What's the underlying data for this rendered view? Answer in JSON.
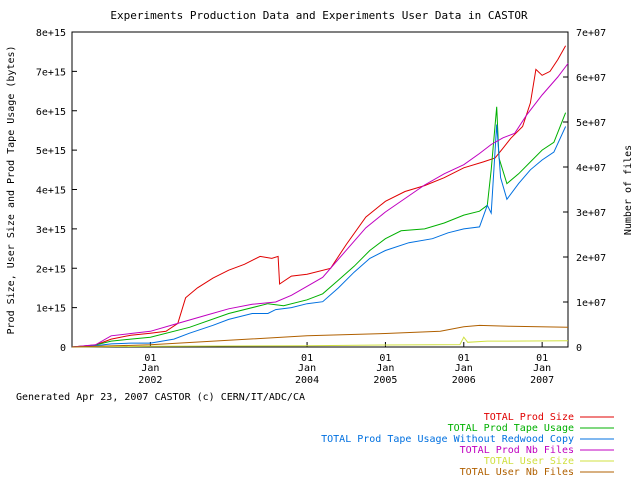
{
  "chart_data": {
    "type": "line",
    "title": "Experiments Production Data and Experiments User Data in CASTOR",
    "ylabel_left": "Prod Size, User Size and Prod Tape Usage (bytes)",
    "ylabel_right": "Number of files",
    "footer": "Generated Apr 23, 2007 CASTOR (c) CERN/IT/ADC/CA",
    "xlim": [
      2001.0,
      2007.33
    ],
    "ylim_left": [
      0,
      8000000000000000.0
    ],
    "ylim_right": [
      0,
      70000000.0
    ],
    "grid": false,
    "legend_position": "bottom-right",
    "left_ticks": [
      {
        "v": 0,
        "label": "0"
      },
      {
        "v": 1000000000000000.0,
        "label": "1e+15"
      },
      {
        "v": 2000000000000000.0,
        "label": "2e+15"
      },
      {
        "v": 3000000000000000.0,
        "label": "3e+15"
      },
      {
        "v": 4000000000000000.0,
        "label": "4e+15"
      },
      {
        "v": 5000000000000000.0,
        "label": "5e+15"
      },
      {
        "v": 6000000000000000.0,
        "label": "6e+15"
      },
      {
        "v": 7000000000000000.0,
        "label": "7e+15"
      },
      {
        "v": 8000000000000000.0,
        "label": "8e+15"
      }
    ],
    "right_ticks": [
      {
        "v": 0,
        "label": "0"
      },
      {
        "v": 10000000.0,
        "label": "1e+07"
      },
      {
        "v": 20000000.0,
        "label": "2e+07"
      },
      {
        "v": 30000000.0,
        "label": "3e+07"
      },
      {
        "v": 40000000.0,
        "label": "4e+07"
      },
      {
        "v": 50000000.0,
        "label": "5e+07"
      },
      {
        "v": 60000000.0,
        "label": "6e+07"
      },
      {
        "v": 70000000.0,
        "label": "7e+07"
      }
    ],
    "x_ticks": [
      {
        "v": 2002.0,
        "day": "01",
        "month": "Jan",
        "year": "2002"
      },
      {
        "v": 2004.0,
        "day": "01",
        "month": "Jan",
        "year": "2004"
      },
      {
        "v": 2005.0,
        "day": "01",
        "month": "Jan",
        "year": "2005"
      },
      {
        "v": 2006.0,
        "day": "01",
        "month": "Jan",
        "year": "2006"
      },
      {
        "v": 2007.0,
        "day": "01",
        "month": "Jan",
        "year": "2007"
      }
    ],
    "series": [
      {
        "name": "TOTAL Prod Size",
        "color": "#e00000",
        "axis": "left",
        "points": [
          [
            2001.0,
            0
          ],
          [
            2001.3,
            50000000000000.0
          ],
          [
            2001.5,
            200000000000000.0
          ],
          [
            2001.75,
            300000000000000.0
          ],
          [
            2002.0,
            350000000000000.0
          ],
          [
            2002.2,
            400000000000000.0
          ],
          [
            2002.35,
            600000000000000.0
          ],
          [
            2002.45,
            1250000000000000.0
          ],
          [
            2002.6,
            1500000000000000.0
          ],
          [
            2002.8,
            1750000000000000.0
          ],
          [
            2003.0,
            1950000000000000.0
          ],
          [
            2003.2,
            2100000000000000.0
          ],
          [
            2003.4,
            2300000000000000.0
          ],
          [
            2003.55,
            2250000000000000.0
          ],
          [
            2003.63,
            2300000000000000.0
          ],
          [
            2003.65,
            1600000000000000.0
          ],
          [
            2003.8,
            1800000000000000.0
          ],
          [
            2004.0,
            1850000000000000.0
          ],
          [
            2004.3,
            2000000000000000.0
          ],
          [
            2004.5,
            2600000000000000.0
          ],
          [
            2004.75,
            3300000000000000.0
          ],
          [
            2005.0,
            3700000000000000.0
          ],
          [
            2005.25,
            3950000000000000.0
          ],
          [
            2005.5,
            4100000000000000.0
          ],
          [
            2005.75,
            4300000000000000.0
          ],
          [
            2006.0,
            4550000000000000.0
          ],
          [
            2006.25,
            4700000000000000.0
          ],
          [
            2006.4,
            4800000000000000.0
          ],
          [
            2006.5,
            5050000000000000.0
          ],
          [
            2006.6,
            5300000000000000.0
          ],
          [
            2006.75,
            5600000000000000.0
          ],
          [
            2006.85,
            6200000000000000.0
          ],
          [
            2006.92,
            7050000000000000.0
          ],
          [
            2007.0,
            6900000000000000.0
          ],
          [
            2007.1,
            7000000000000000.0
          ],
          [
            2007.2,
            7300000000000000.0
          ],
          [
            2007.3,
            7650000000000000.0
          ]
        ]
      },
      {
        "name": "TOTAL Prod Tape Usage",
        "color": "#00b000",
        "axis": "left",
        "points": [
          [
            2001.0,
            0
          ],
          [
            2001.3,
            50000000000000.0
          ],
          [
            2001.5,
            150000000000000.0
          ],
          [
            2001.75,
            200000000000000.0
          ],
          [
            2002.0,
            250000000000000.0
          ],
          [
            2002.5,
            500000000000000.0
          ],
          [
            2003.0,
            850000000000000.0
          ],
          [
            2003.5,
            1100000000000000.0
          ],
          [
            2003.7,
            1050000000000000.0
          ],
          [
            2004.0,
            1200000000000000.0
          ],
          [
            2004.2,
            1350000000000000.0
          ],
          [
            2004.4,
            1700000000000000.0
          ],
          [
            2004.6,
            2050000000000000.0
          ],
          [
            2004.8,
            2450000000000000.0
          ],
          [
            2005.0,
            2750000000000000.0
          ],
          [
            2005.2,
            2950000000000000.0
          ],
          [
            2005.5,
            3000000000000000.0
          ],
          [
            2005.75,
            3150000000000000.0
          ],
          [
            2006.0,
            3350000000000000.0
          ],
          [
            2006.2,
            3450000000000000.0
          ],
          [
            2006.3,
            3600000000000000.0
          ],
          [
            2006.35,
            4500000000000000.0
          ],
          [
            2006.42,
            6100000000000000.0
          ],
          [
            2006.45,
            4800000000000000.0
          ],
          [
            2006.55,
            4150000000000000.0
          ],
          [
            2006.7,
            4400000000000000.0
          ],
          [
            2006.85,
            4700000000000000.0
          ],
          [
            2007.0,
            5000000000000000.0
          ],
          [
            2007.15,
            5200000000000000.0
          ],
          [
            2007.3,
            5950000000000000.0
          ]
        ]
      },
      {
        "name": "TOTAL Prod Tape Usage Without Redwood Copy",
        "color": "#0070e0",
        "axis": "left",
        "points": [
          [
            2001.0,
            0
          ],
          [
            2001.3,
            30000000000000.0
          ],
          [
            2001.5,
            80000000000000.0
          ],
          [
            2001.75,
            100000000000000.0
          ],
          [
            2002.0,
            100000000000000.0
          ],
          [
            2002.3,
            200000000000000.0
          ],
          [
            2002.5,
            350000000000000.0
          ],
          [
            2002.8,
            550000000000000.0
          ],
          [
            2003.0,
            700000000000000.0
          ],
          [
            2003.3,
            850000000000000.0
          ],
          [
            2003.5,
            850000000000000.0
          ],
          [
            2003.6,
            950000000000000.0
          ],
          [
            2003.8,
            1000000000000000.0
          ],
          [
            2004.0,
            1100000000000000.0
          ],
          [
            2004.2,
            1150000000000000.0
          ],
          [
            2004.4,
            1500000000000000.0
          ],
          [
            2004.6,
            1900000000000000.0
          ],
          [
            2004.8,
            2250000000000000.0
          ],
          [
            2005.0,
            2450000000000000.0
          ],
          [
            2005.3,
            2650000000000000.0
          ],
          [
            2005.6,
            2750000000000000.0
          ],
          [
            2005.8,
            2900000000000000.0
          ],
          [
            2006.0,
            3000000000000000.0
          ],
          [
            2006.2,
            3050000000000000.0
          ],
          [
            2006.3,
            3600000000000000.0
          ],
          [
            2006.35,
            3400000000000000.0
          ],
          [
            2006.42,
            5650000000000000.0
          ],
          [
            2006.47,
            4300000000000000.0
          ],
          [
            2006.55,
            3750000000000000.0
          ],
          [
            2006.7,
            4150000000000000.0
          ],
          [
            2006.85,
            4500000000000000.0
          ],
          [
            2007.0,
            4750000000000000.0
          ],
          [
            2007.15,
            4950000000000000.0
          ],
          [
            2007.3,
            5600000000000000.0
          ]
        ]
      },
      {
        "name": "TOTAL Prod Nb Files",
        "color": "#c000c0",
        "axis": "right",
        "points": [
          [
            2001.0,
            0
          ],
          [
            2001.3,
            500000.0
          ],
          [
            2001.5,
            2500000.0
          ],
          [
            2001.75,
            3000000.0
          ],
          [
            2002.0,
            3500000.0
          ],
          [
            2002.3,
            5000000.0
          ],
          [
            2002.7,
            7000000.0
          ],
          [
            2003.0,
            8500000.0
          ],
          [
            2003.3,
            9500000.0
          ],
          [
            2003.6,
            10000000.0
          ],
          [
            2003.8,
            11500000.0
          ],
          [
            2004.0,
            13500000.0
          ],
          [
            2004.2,
            15500000.0
          ],
          [
            2004.5,
            21500000.0
          ],
          [
            2004.75,
            26500000.0
          ],
          [
            2005.0,
            30000000.0
          ],
          [
            2005.25,
            33000000.0
          ],
          [
            2005.5,
            36000000.0
          ],
          [
            2005.75,
            38500000.0
          ],
          [
            2006.0,
            40500000.0
          ],
          [
            2006.2,
            43000000.0
          ],
          [
            2006.35,
            45000000.0
          ],
          [
            2006.5,
            46500000.0
          ],
          [
            2006.65,
            47500000.0
          ],
          [
            2006.8,
            51500000.0
          ],
          [
            2007.0,
            56000000.0
          ],
          [
            2007.2,
            60000000.0
          ],
          [
            2007.33,
            63000000.0
          ]
        ]
      },
      {
        "name": "TOTAL User Size",
        "color": "#d0e040",
        "axis": "left",
        "points": [
          [
            2001.0,
            0
          ],
          [
            2002.0,
            20000000000000.0
          ],
          [
            2004.0,
            30000000000000.0
          ],
          [
            2005.0,
            50000000000000.0
          ],
          [
            2005.95,
            60000000000000.0
          ],
          [
            2006.0,
            250000000000000.0
          ],
          [
            2006.05,
            120000000000000.0
          ],
          [
            2006.3,
            150000000000000.0
          ],
          [
            2006.5,
            150000000000000.0
          ],
          [
            2007.33,
            160000000000000.0
          ]
        ]
      },
      {
        "name": "TOTAL User Nb Files",
        "color": "#b06000",
        "axis": "right",
        "points": [
          [
            2001.0,
            0
          ],
          [
            2002.0,
            500000.0
          ],
          [
            2003.0,
            1500000.0
          ],
          [
            2004.0,
            2500000.0
          ],
          [
            2005.0,
            3000000.0
          ],
          [
            2005.7,
            3500000.0
          ],
          [
            2006.0,
            4500000.0
          ],
          [
            2006.2,
            4800000.0
          ],
          [
            2006.6,
            4600000.0
          ],
          [
            2007.33,
            4400000.0
          ]
        ]
      }
    ]
  }
}
